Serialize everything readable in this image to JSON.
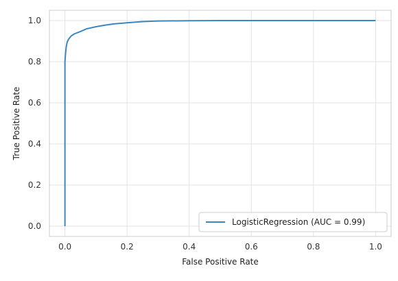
{
  "chart_data": {
    "type": "line",
    "title": "",
    "xlabel": "False Positive Rate",
    "ylabel": "True Positive Rate",
    "xlim": [
      -0.05,
      1.05
    ],
    "ylim": [
      -0.05,
      1.05
    ],
    "xticks": [
      0.0,
      0.2,
      0.4,
      0.6,
      0.8,
      1.0
    ],
    "yticks": [
      0.0,
      0.2,
      0.4,
      0.6,
      0.8,
      1.0
    ],
    "xtick_labels": [
      "0.0",
      "0.2",
      "0.4",
      "0.6",
      "0.8",
      "1.0"
    ],
    "ytick_labels": [
      "0.0",
      "0.2",
      "0.4",
      "0.6",
      "0.8",
      "1.0"
    ],
    "grid": true,
    "legend_position": "lower-right",
    "series": [
      {
        "name": "LogisticRegression (AUC = 0.99)",
        "color": "#3a87c0",
        "x": [
          0.0,
          0.0,
          0.002,
          0.004,
          0.007,
          0.012,
          0.02,
          0.03,
          0.05,
          0.07,
          0.1,
          0.13,
          0.16,
          0.2,
          0.25,
          0.3,
          0.4,
          0.5,
          0.6,
          0.8,
          1.0
        ],
        "y": [
          0.0,
          0.8,
          0.84,
          0.87,
          0.895,
          0.91,
          0.925,
          0.935,
          0.947,
          0.96,
          0.97,
          0.978,
          0.984,
          0.989,
          0.995,
          0.998,
          0.999,
          1.0,
          1.0,
          1.0,
          1.0
        ]
      }
    ]
  }
}
